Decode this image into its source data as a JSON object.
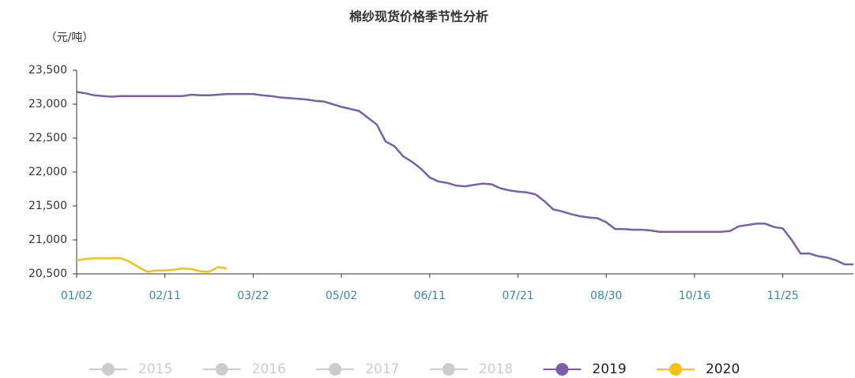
{
  "chart_data": {
    "type": "line",
    "title": "棉纱现货价格季节性分析",
    "y_label": "（元/吨）",
    "categories": [
      "01/02",
      null,
      null,
      null,
      null,
      null,
      null,
      null,
      null,
      null,
      "02/11",
      null,
      null,
      null,
      null,
      null,
      null,
      null,
      null,
      null,
      "03/22",
      null,
      null,
      null,
      null,
      null,
      null,
      null,
      null,
      null,
      "05/02",
      null,
      null,
      null,
      null,
      null,
      null,
      null,
      null,
      null,
      "06/11",
      null,
      null,
      null,
      null,
      null,
      null,
      null,
      null,
      null,
      "07/21",
      null,
      null,
      null,
      null,
      null,
      null,
      null,
      null,
      null,
      "08/30",
      null,
      null,
      null,
      null,
      null,
      null,
      null,
      null,
      null,
      "10/16",
      null,
      null,
      null,
      null,
      null,
      null,
      null,
      null,
      null,
      "11/25",
      null,
      null,
      null,
      null,
      null,
      null,
      null,
      null
    ],
    "ylim": [
      20500,
      23500
    ],
    "yticks": [
      {
        "value": 20500,
        "label": "20,500"
      },
      {
        "value": 21000,
        "label": "21,000"
      },
      {
        "value": 21500,
        "label": "21,500"
      },
      {
        "value": 22000,
        "label": "22,000"
      },
      {
        "value": 22500,
        "label": "22,500"
      },
      {
        "value": 23000,
        "label": "23,000"
      },
      {
        "value": 23500,
        "label": "23,500"
      }
    ],
    "legend_position": "bottom",
    "series": [
      {
        "name": "2015",
        "color": "#cccccc",
        "values": [
          null,
          null,
          null,
          null,
          null,
          null,
          null,
          null,
          null,
          null,
          null,
          null,
          null,
          null,
          null,
          null,
          null,
          null,
          null,
          null,
          null,
          null,
          null,
          null,
          null,
          null,
          null,
          null,
          null,
          null,
          null,
          null,
          null,
          null,
          null,
          null,
          null,
          null,
          null,
          null,
          null,
          null,
          null,
          null,
          null,
          null,
          null,
          null,
          null,
          null,
          null,
          null,
          null,
          null,
          null,
          null,
          null,
          null,
          null,
          null,
          null,
          null,
          null,
          null,
          null,
          null,
          null,
          null,
          null,
          null,
          null,
          null,
          null,
          null,
          null,
          null,
          null,
          null,
          null,
          null,
          null,
          null,
          null,
          null,
          null,
          null,
          null,
          null,
          null
        ]
      },
      {
        "name": "2016",
        "color": "#cccccc",
        "values": [
          null,
          null,
          null,
          null,
          null,
          null,
          null,
          null,
          null,
          null,
          null,
          null,
          null,
          null,
          null,
          null,
          null,
          null,
          null,
          null,
          null,
          null,
          null,
          null,
          null,
          null,
          null,
          null,
          null,
          null,
          null,
          null,
          null,
          null,
          null,
          null,
          null,
          null,
          null,
          null,
          null,
          null,
          null,
          null,
          null,
          null,
          null,
          null,
          null,
          null,
          null,
          null,
          null,
          null,
          null,
          null,
          null,
          null,
          null,
          null,
          null,
          null,
          null,
          null,
          null,
          null,
          null,
          null,
          null,
          null,
          null,
          null,
          null,
          null,
          null,
          null,
          null,
          null,
          null,
          null,
          null,
          null,
          null,
          null,
          null,
          null,
          null,
          null,
          null
        ]
      },
      {
        "name": "2017",
        "color": "#cccccc",
        "values": [
          null,
          null,
          null,
          null,
          null,
          null,
          null,
          null,
          null,
          null,
          null,
          null,
          null,
          null,
          null,
          null,
          null,
          null,
          null,
          null,
          null,
          null,
          null,
          null,
          null,
          null,
          null,
          null,
          null,
          null,
          null,
          null,
          null,
          null,
          null,
          null,
          null,
          null,
          null,
          null,
          null,
          null,
          null,
          null,
          null,
          null,
          null,
          null,
          null,
          null,
          null,
          null,
          null,
          null,
          null,
          null,
          null,
          null,
          null,
          null,
          null,
          null,
          null,
          null,
          null,
          null,
          null,
          null,
          null,
          null,
          null,
          null,
          null,
          null,
          null,
          null,
          null,
          null,
          null,
          null,
          null,
          null,
          null,
          null,
          null,
          null,
          null,
          null,
          null
        ]
      },
      {
        "name": "2018",
        "color": "#cccccc",
        "values": [
          null,
          null,
          null,
          null,
          null,
          null,
          null,
          null,
          null,
          null,
          null,
          null,
          null,
          null,
          null,
          null,
          null,
          null,
          null,
          null,
          null,
          null,
          null,
          null,
          null,
          null,
          null,
          null,
          null,
          null,
          null,
          null,
          null,
          null,
          null,
          null,
          null,
          null,
          null,
          null,
          null,
          null,
          null,
          null,
          null,
          null,
          null,
          null,
          null,
          null,
          null,
          null,
          null,
          null,
          null,
          null,
          null,
          null,
          null,
          null,
          null,
          null,
          null,
          null,
          null,
          null,
          null,
          null,
          null,
          null,
          null,
          null,
          null,
          null,
          null,
          null,
          null,
          null,
          null,
          null,
          null,
          null,
          null,
          null,
          null,
          null,
          null,
          null,
          null
        ]
      },
      {
        "name": "2019",
        "color": "#7b5ea7",
        "values": [
          23180,
          23160,
          23130,
          23120,
          23110,
          23120,
          23120,
          23120,
          23120,
          23120,
          23120,
          23120,
          23120,
          23140,
          23130,
          23130,
          23140,
          23150,
          23150,
          23150,
          23150,
          23130,
          23120,
          23100,
          23090,
          23080,
          23070,
          23050,
          23040,
          23000,
          22960,
          22930,
          22900,
          22800,
          22700,
          22450,
          22380,
          22230,
          22150,
          22050,
          21920,
          21860,
          21840,
          21800,
          21790,
          21810,
          21830,
          21820,
          21760,
          21730,
          21710,
          21700,
          21670,
          21570,
          21450,
          21420,
          21380,
          21350,
          21330,
          21320,
          21260,
          21160,
          21160,
          21150,
          21150,
          21140,
          21120,
          21120,
          21120,
          21120,
          21120,
          21120,
          21120,
          21120,
          21130,
          21200,
          21220,
          21240,
          21240,
          21190,
          21170,
          21000,
          20800,
          20800,
          20760,
          20740,
          20700,
          20640,
          20640
        ]
      },
      {
        "name": "2020",
        "color": "#f5c018",
        "values": [
          20700,
          20720,
          20730,
          20730,
          20730,
          20730,
          20680,
          20600,
          20530,
          20550,
          20550,
          20560,
          20580,
          20570,
          20540,
          20530,
          20600,
          20580,
          null,
          null,
          null,
          null,
          null,
          null,
          null,
          null,
          null,
          null,
          null,
          null,
          null,
          null,
          null,
          null,
          null,
          null,
          null,
          null,
          null,
          null,
          null,
          null,
          null,
          null,
          null,
          null,
          null,
          null,
          null,
          null,
          null,
          null,
          null,
          null,
          null,
          null,
          null,
          null,
          null,
          null,
          null,
          null,
          null,
          null,
          null,
          null,
          null,
          null,
          null,
          null,
          null,
          null,
          null,
          null,
          null,
          null,
          null,
          null,
          null,
          null,
          null,
          null,
          null,
          null,
          null,
          null,
          null,
          null,
          null
        ]
      }
    ]
  }
}
